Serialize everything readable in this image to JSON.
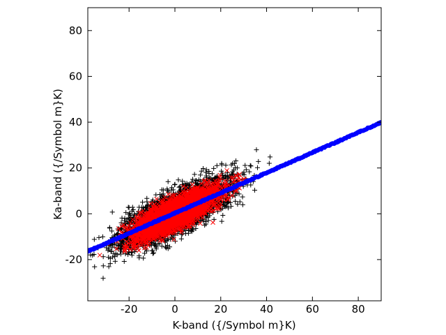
{
  "chart_data": {
    "type": "scatter",
    "title": "",
    "xlabel": "K-band ({/Symbol m}K)",
    "ylabel": "Ka-band ({/Symbol m}K)",
    "xlim": [
      -38,
      90
    ],
    "ylim": [
      -38,
      90
    ],
    "xticks": [
      -20,
      0,
      20,
      40,
      60,
      80
    ],
    "yticks": [
      -20,
      0,
      20,
      40,
      60,
      80
    ],
    "grid": false,
    "legend": "none",
    "series": [
      {
        "marker": "plus",
        "color": "#000000",
        "distribution": {
          "slope": 0.48,
          "intercept": 0.4,
          "x_mean": 0,
          "x_sd": 12,
          "y_noise_sd": 4.6,
          "count": 3200
        }
      },
      {
        "marker": "x",
        "color": "#ff0000",
        "distribution": {
          "slope": 0.48,
          "intercept": 0.0,
          "x_mean": 0,
          "x_sd": 9,
          "y_noise_sd": 3.2,
          "count": 3200
        }
      },
      {
        "marker": "circle",
        "color": "#0000ff",
        "line": {
          "slope": 0.44,
          "intercept": 0.3,
          "x_range": [
            -38,
            90
          ]
        }
      }
    ]
  }
}
